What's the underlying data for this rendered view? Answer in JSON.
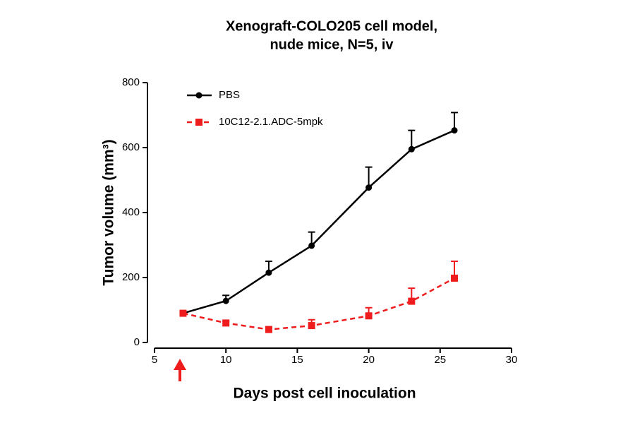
{
  "chart_data": {
    "type": "line",
    "title": [
      "Xenograft-COLO205 cell model,",
      "nude mice, N=5, iv"
    ],
    "x_label": "Days post cell inoculation",
    "y_label": "Tumor volume (mm³)",
    "x": [
      7,
      10,
      13,
      16,
      20,
      23,
      26
    ],
    "series": [
      {
        "name": "PBS",
        "color": "#000000",
        "marker": "circle",
        "dashed": false,
        "values": [
          90,
          128,
          215,
          298,
          477,
          595,
          653
        ],
        "errors": [
          5,
          17,
          35,
          42,
          63,
          58,
          55
        ]
      },
      {
        "name": "10C12-2.1.ADC-5mpk",
        "color": "#ee1c1c",
        "marker": "square",
        "dashed": true,
        "values": [
          90,
          60,
          40,
          52,
          82,
          127,
          198
        ],
        "errors": [
          5,
          5,
          8,
          18,
          25,
          40,
          52
        ]
      }
    ],
    "xlim": [
      5,
      30
    ],
    "xticks": [
      5,
      10,
      15,
      20,
      25,
      30
    ],
    "ylim": [
      0,
      800
    ],
    "yticks": [
      0,
      200,
      400,
      600,
      800
    ],
    "legend": "upper left",
    "grid": false
  }
}
